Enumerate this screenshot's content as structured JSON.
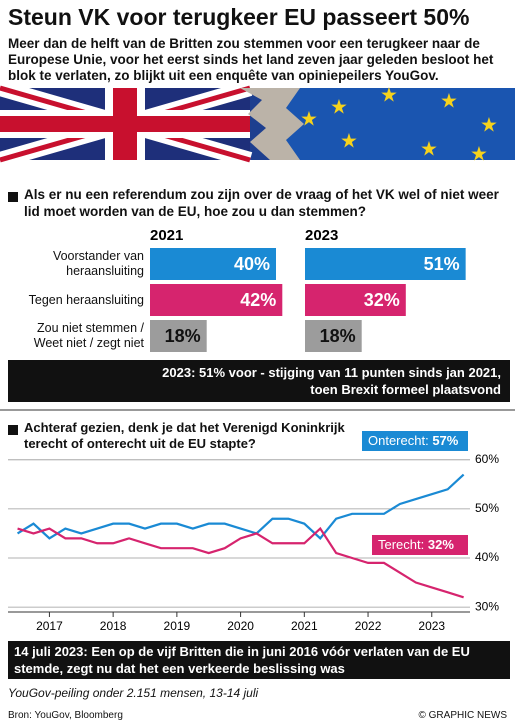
{
  "title": "Steun VK voor terugkeer EU passeert 50%",
  "subtitle": "Meer dan de helft van de Britten zou stemmen voor een terugkeer naar de Europese Unie, voor het eerst sinds het land zeven jaar geleden besloot het blok te verlaten, zo blijkt uit een enquête van opiniepeilers YouGov.",
  "chart_data": [
    {
      "type": "bar",
      "title": "Als er nu een referendum zou zijn over de vraag of het VK wel of niet weer lid moet worden van de EU, hoe zou u dan stemmen?",
      "categories": [
        "Voorstander van heraansluiting",
        "Tegen heraansluiting",
        "Zou niet stemmen / Weet niet / zegt niet"
      ],
      "colors": [
        "#1a8ad4",
        "#d6246e",
        "#9c9c9c"
      ],
      "series": [
        {
          "name": "2021",
          "values": [
            40,
            42,
            18
          ],
          "value_labels": [
            "40%",
            "42%",
            "18%"
          ]
        },
        {
          "name": "2023",
          "values": [
            51,
            32,
            18
          ],
          "value_labels": [
            "51%",
            "32%",
            "18%"
          ]
        }
      ],
      "annotation": "2023: 51% voor - stijging van 11 punten sinds jan 2021, toen Brexit formeel plaatsvond"
    },
    {
      "type": "line",
      "title": "Achteraf gezien, denk je dat het Verenigd Koninkrijk terecht of onterecht uit de EU stapte?",
      "x": [
        2016.5,
        2016.75,
        2017,
        2017.25,
        2017.5,
        2017.75,
        2018,
        2018.25,
        2018.5,
        2018.75,
        2019,
        2019.25,
        2019.5,
        2019.75,
        2020,
        2020.25,
        2020.5,
        2020.75,
        2021,
        2021.25,
        2021.5,
        2021.75,
        2022,
        2022.25,
        2022.5,
        2022.75,
        2023,
        2023.25,
        2023.5
      ],
      "xlim": [
        2016.35,
        2023.6
      ],
      "xticks": [
        2017,
        2018,
        2019,
        2020,
        2021,
        2022,
        2023
      ],
      "ylim": [
        29,
        62
      ],
      "yticks": [
        {
          "value": 30,
          "label": "30%"
        },
        {
          "value": 40,
          "label": "40%"
        },
        {
          "value": 50,
          "label": "50%"
        },
        {
          "value": 60,
          "label": "60%"
        }
      ],
      "grid": true,
      "series": [
        {
          "name": "Onterecht",
          "color": "#1a8ad4",
          "end_label": "57%",
          "values": [
            45,
            47,
            44,
            46,
            45,
            46,
            47,
            47,
            46,
            47,
            47,
            46,
            47,
            47,
            46,
            45,
            48,
            48,
            47,
            44,
            48,
            49,
            49,
            49,
            51,
            52,
            53,
            54,
            57
          ]
        },
        {
          "name": "Terecht",
          "color": "#d6246e",
          "end_label": "32%",
          "values": [
            46,
            45,
            46,
            44,
            44,
            43,
            43,
            44,
            43,
            42,
            42,
            42,
            41,
            42,
            44,
            45,
            43,
            43,
            43,
            46,
            41,
            40,
            39,
            39,
            37,
            35,
            34,
            33,
            32
          ]
        }
      ],
      "annotation": "14 juli 2023: Een op de vijf Britten die in juni 2016 vóór verlaten van de EU stemde, zegt nu dat het een verkeerde beslissing was"
    }
  ],
  "footnote": "YouGov-peiling onder 2.151 mensen, 13-14 juli",
  "source": "Bron: YouGov, Bloomberg",
  "credit": "© GRAPHIC NEWS"
}
